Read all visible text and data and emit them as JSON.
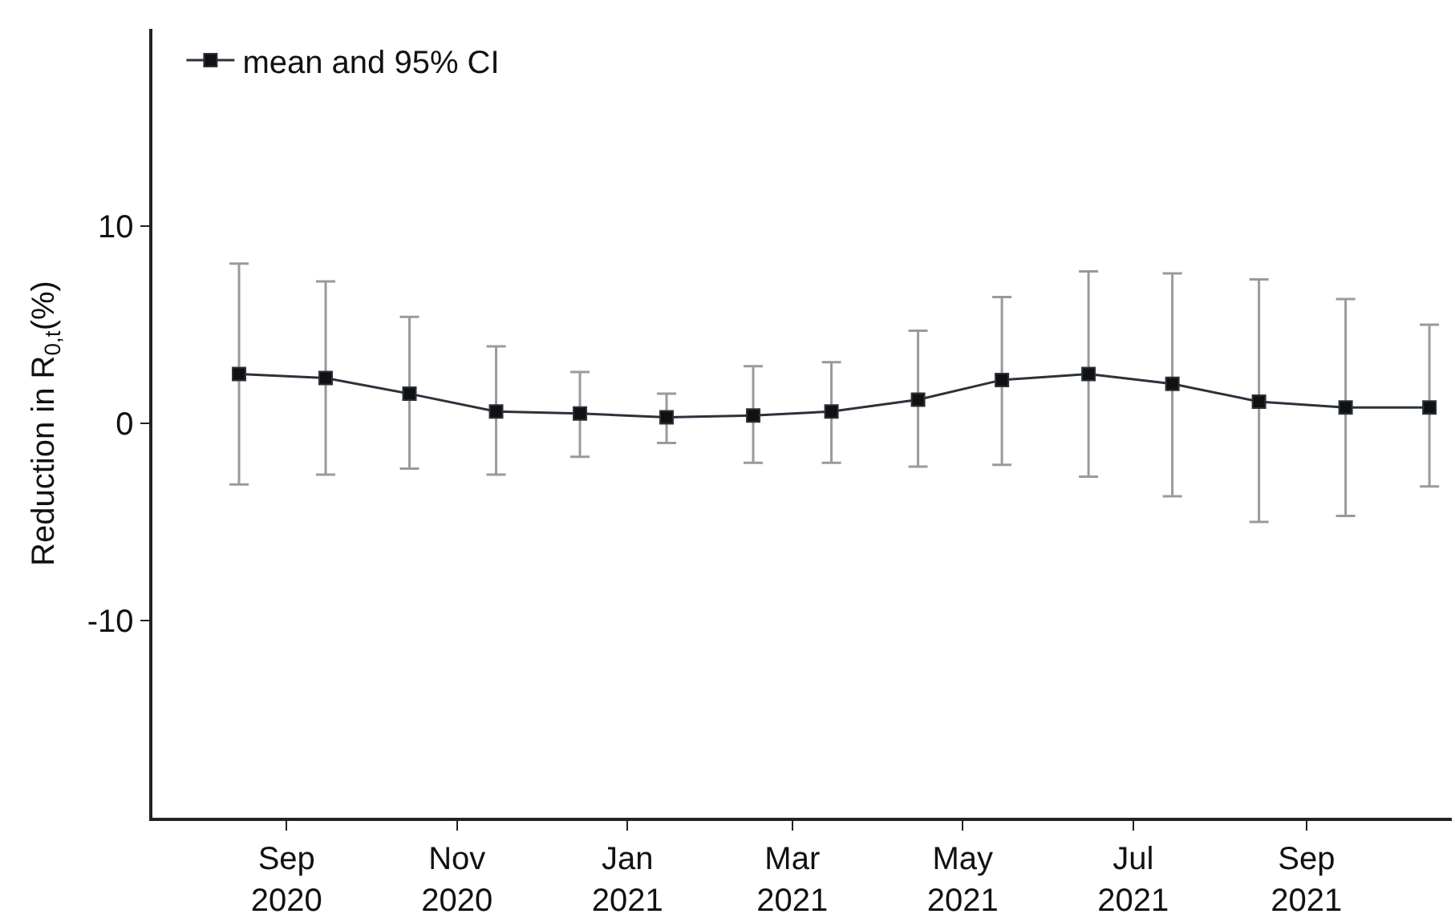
{
  "chart_data": {
    "type": "line",
    "ylabel": "Reduction in R$_{0,t}$(%)",
    "x": [
      "2020-08-15",
      "2020-09-15",
      "2020-10-15",
      "2020-11-15",
      "2020-12-15",
      "2021-01-15",
      "2021-02-15",
      "2021-03-15",
      "2021-04-15",
      "2021-05-15",
      "2021-06-15",
      "2021-07-15",
      "2021-08-15",
      "2021-09-15",
      "2021-10-15"
    ],
    "series": [
      {
        "name": "mean and 95% CI",
        "color": "#2b323b",
        "values": [
          2.5,
          2.3,
          1.5,
          0.6,
          0.5,
          0.3,
          0.4,
          0.6,
          1.2,
          2.2,
          2.5,
          2.0,
          1.1,
          0.8,
          0.8
        ],
        "errors": [
          [
            -3.1,
            8.1
          ],
          [
            -2.6,
            7.2
          ],
          [
            -2.3,
            5.4
          ],
          [
            -2.6,
            3.9
          ],
          [
            -1.7,
            2.6
          ],
          [
            -1.0,
            1.5
          ],
          [
            -2.0,
            2.9
          ],
          [
            -2.0,
            3.1
          ],
          [
            -2.2,
            4.7
          ],
          [
            -2.1,
            6.4
          ],
          [
            -2.7,
            7.7
          ],
          [
            -3.7,
            7.6
          ],
          [
            -5.0,
            7.3
          ],
          [
            -4.7,
            6.3
          ],
          [
            -3.2,
            5.0
          ]
        ]
      }
    ],
    "marker": "square",
    "line_style": "solid",
    "xlim": [
      "2020-07-15",
      "2021-10-23"
    ],
    "xticks": [
      {
        "value": "2020-09-01",
        "label": "Sep\n2020"
      },
      {
        "value": "2020-11-01",
        "label": "Nov\n2020"
      },
      {
        "value": "2021-01-01",
        "label": "Jan\n2021"
      },
      {
        "value": "2021-03-01",
        "label": "Mar\n2021"
      },
      {
        "value": "2021-05-01",
        "label": "May\n2021"
      },
      {
        "value": "2021-07-01",
        "label": "Jul\n2021"
      },
      {
        "value": "2021-09-01",
        "label": "Sep\n2021"
      }
    ],
    "ylim": [
      -20,
      20
    ],
    "yticks": [
      -10,
      0,
      10
    ],
    "legend": "top left"
  }
}
